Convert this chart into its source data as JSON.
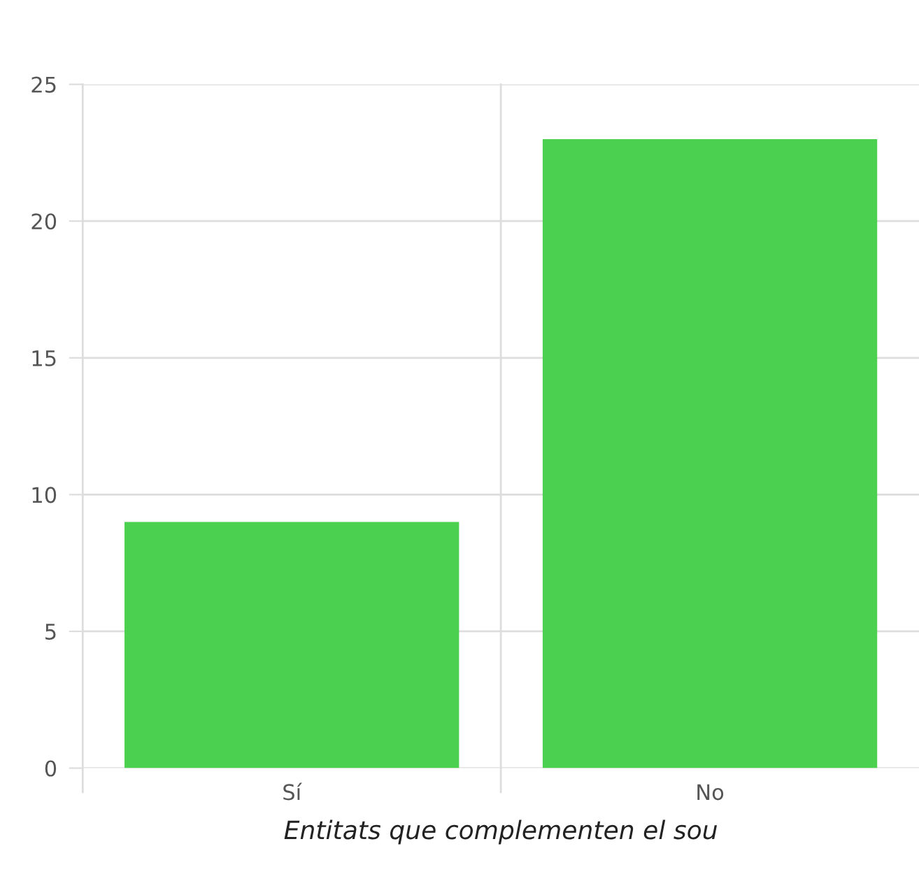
{
  "chart_data": {
    "type": "bar",
    "xlabel": "Entitats que complementen el sou",
    "categories": [
      "Sí",
      "No"
    ],
    "values": [
      9,
      23
    ],
    "color": "#4cd04f",
    "ylim": [
      0,
      25
    ],
    "yticks": [
      0,
      5,
      10,
      15,
      20,
      25
    ],
    "grid": true
  }
}
